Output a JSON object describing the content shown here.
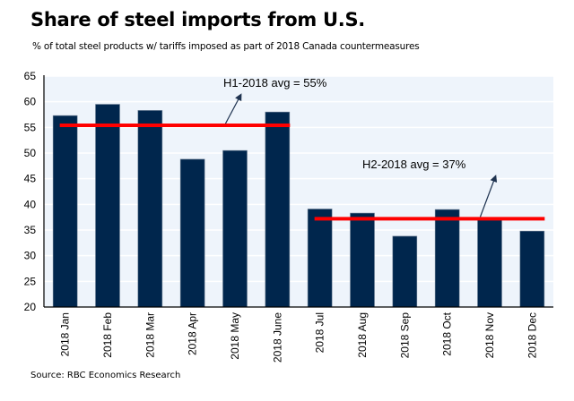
{
  "chart_data": {
    "type": "bar",
    "title": "Share of steel imports from U.S.",
    "subtitle": "% of total steel products w/ tariffs imposed as part of 2018 Canada countermeasures",
    "source": "Source: RBC Economics Research",
    "xlabel": "",
    "ylabel": "",
    "ylim": [
      20,
      65
    ],
    "yticks": [
      20,
      25,
      30,
      35,
      40,
      45,
      50,
      55,
      60,
      65
    ],
    "grid": true,
    "categories": [
      "2018 Jan",
      "2018 Feb",
      "2018 Mar",
      "2018 Apr",
      "2018 May",
      "2018 June",
      "2018 Jul",
      "2018 Aug",
      "2018 Sep",
      "2018 Oct",
      "2018 Nov",
      "2018 Dec"
    ],
    "values": [
      57.3,
      59.5,
      58.3,
      48.8,
      50.5,
      58.0,
      39.1,
      38.3,
      33.8,
      39.0,
      37.2,
      34.8
    ],
    "colors": {
      "bar": "#00264d",
      "avg_line": "#ff0000",
      "plot_bg": "#eef4fb",
      "grid": "#ffffff",
      "arrow": "#1f3350"
    },
    "reference_lines": [
      {
        "label": "H1-2018 avg = 55%",
        "value": 55.4,
        "from_category": 0,
        "to_category": 5
      },
      {
        "label": "H2-2018 avg = 37%",
        "value": 37.2,
        "from_category": 6,
        "to_category": 11
      }
    ]
  }
}
